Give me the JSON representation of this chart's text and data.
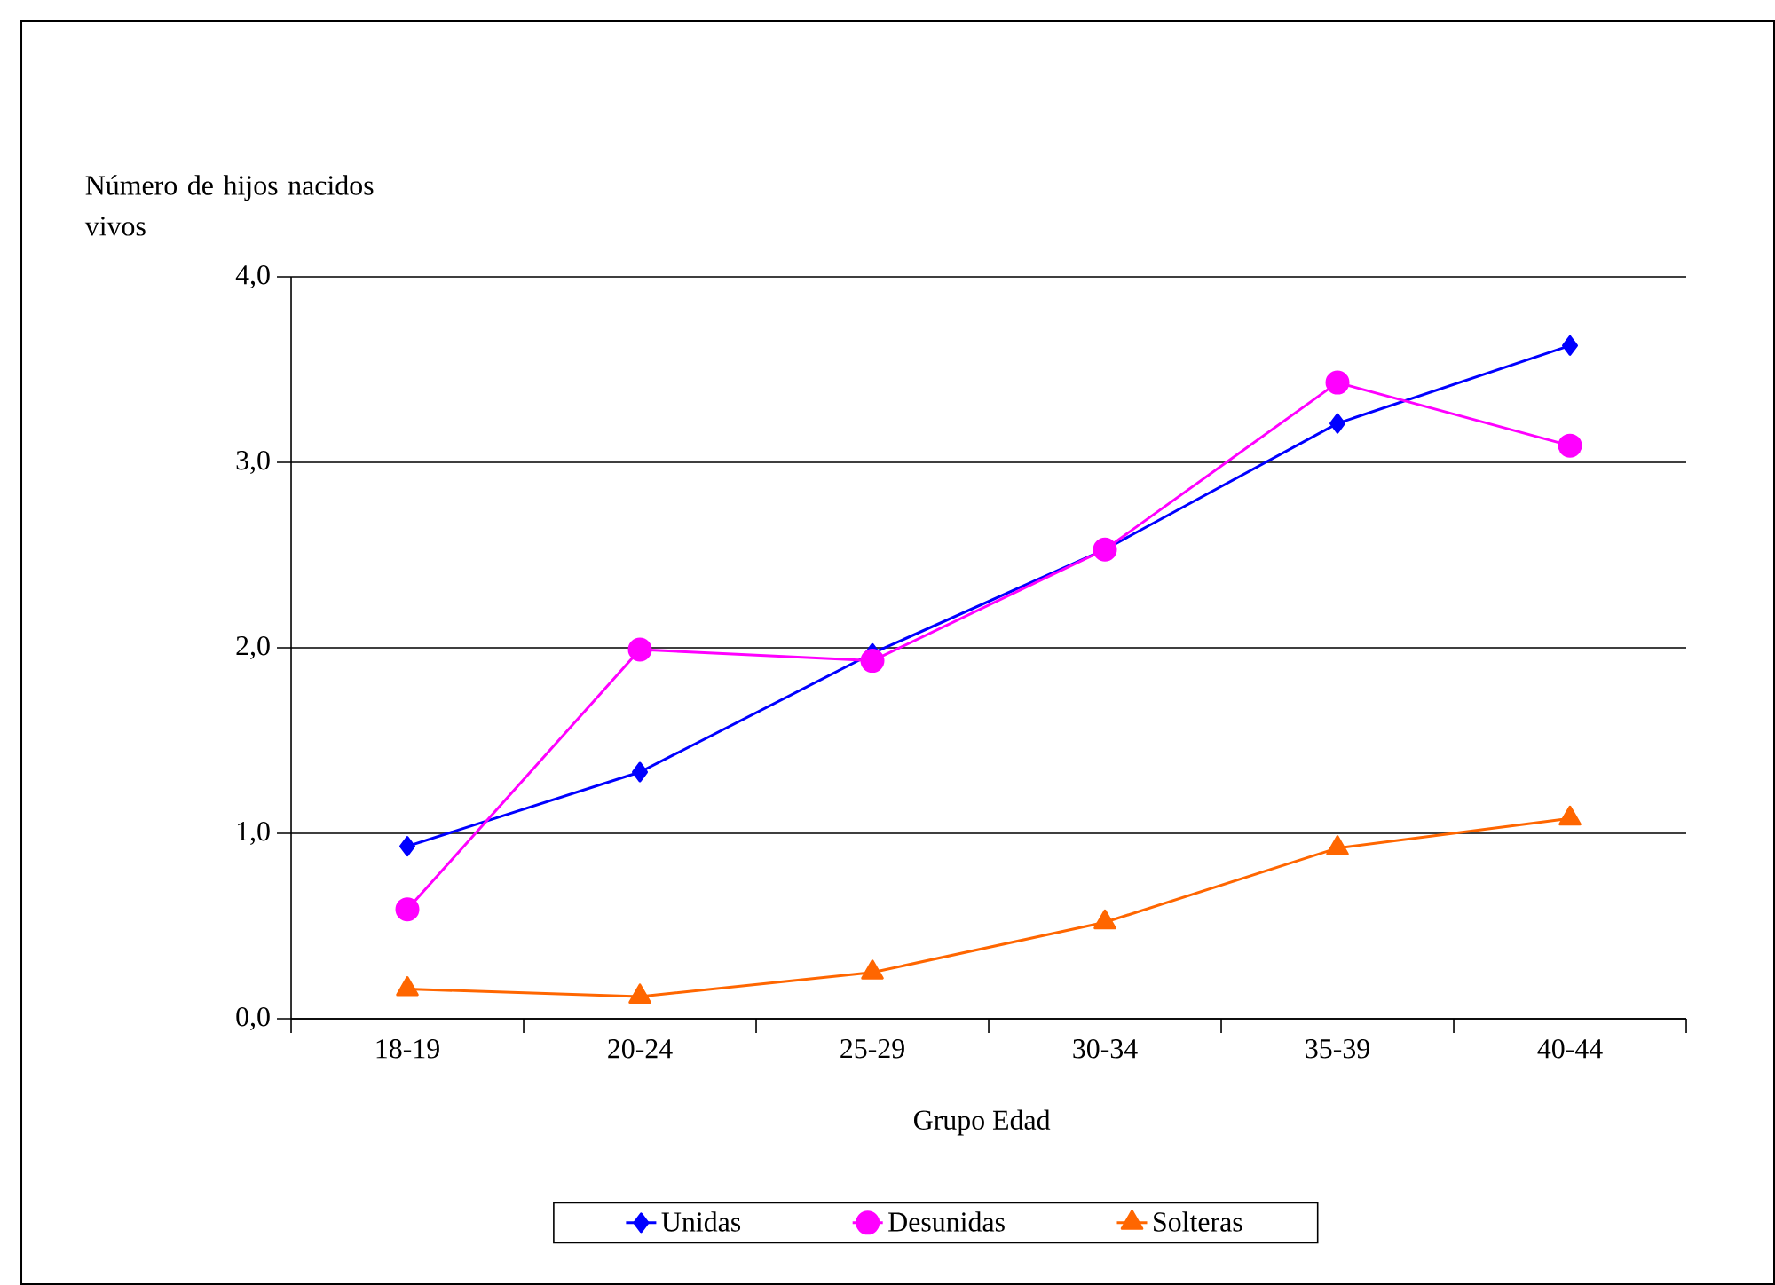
{
  "chart_data": {
    "type": "line",
    "xlabel": "Grupo Edad",
    "ylabel": "Número de hijos nacidos vivos",
    "categories": [
      "18-19",
      "20-24",
      "25-29",
      "30-34",
      "35-39",
      "40-44"
    ],
    "series": [
      {
        "name": "Unidas",
        "color": "#0000ff",
        "marker": "diamond",
        "values": [
          0.93,
          1.33,
          1.97,
          2.53,
          3.21,
          3.63
        ]
      },
      {
        "name": "Desunidas",
        "color": "#ff00ff",
        "marker": "circle",
        "values": [
          0.59,
          1.99,
          1.93,
          2.53,
          3.43,
          3.09
        ]
      },
      {
        "name": "Solteras",
        "color": "#ff6600",
        "marker": "triangle",
        "values": [
          0.16,
          0.12,
          0.25,
          0.52,
          0.92,
          1.08
        ]
      }
    ],
    "ylim": [
      0,
      4
    ],
    "yticks": [
      {
        "value": 0,
        "label": "0,0"
      },
      {
        "value": 1,
        "label": "1,0"
      },
      {
        "value": 2,
        "label": "2,0"
      },
      {
        "value": 3,
        "label": "3,0"
      },
      {
        "value": 4,
        "label": "4,0"
      }
    ],
    "grid": "y",
    "legend": "bottom",
    "line_style": "solid"
  }
}
